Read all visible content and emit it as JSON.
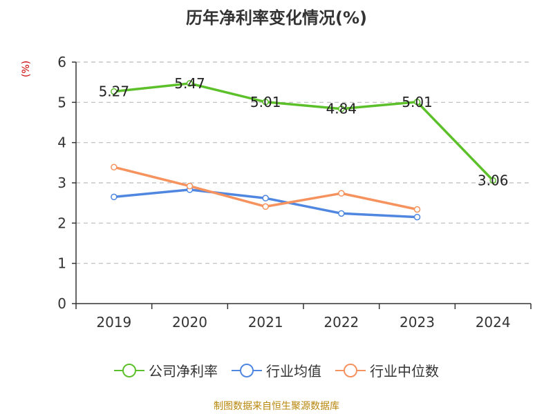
{
  "title": "历年净利率变化情况(%)",
  "unit_label": "(%)",
  "source": "制图数据来自恒生聚源数据库",
  "colors": {
    "company": "#5cc02a",
    "industry_avg": "#4f86e0",
    "industry_median": "#f5925e",
    "grid": "#bbbbbb",
    "axis": "#333333",
    "unit": "#cc0000",
    "source": "#b8860b"
  },
  "chart_data": {
    "type": "line",
    "title": "历年净利率变化情况(%)",
    "ylabel": "(%)",
    "categories": [
      "2019",
      "2020",
      "2021",
      "2022",
      "2023",
      "2024"
    ],
    "ylim": [
      0,
      6
    ],
    "yticks": [
      "0",
      "1",
      "2",
      "3",
      "4",
      "5",
      "6"
    ],
    "grid": true,
    "legend_position": "bottom",
    "series": [
      {
        "name": "公司净利率",
        "key": "company",
        "values": [
          5.27,
          5.47,
          5.01,
          4.84,
          5.01,
          3.06
        ],
        "labels": [
          "5.27",
          "5.47",
          "5.01",
          "4.84",
          "5.01",
          "3.06"
        ]
      },
      {
        "name": "行业均值",
        "key": "industry_avg",
        "values": [
          2.65,
          2.83,
          2.62,
          2.24,
          2.15,
          null
        ]
      },
      {
        "name": "行业中位数",
        "key": "industry_median",
        "values": [
          3.39,
          2.92,
          2.41,
          2.74,
          2.34,
          null
        ]
      }
    ]
  }
}
